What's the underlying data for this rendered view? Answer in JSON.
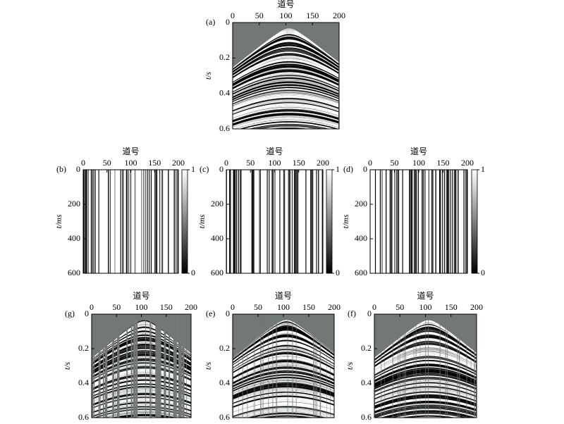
{
  "panels": [
    {
      "label": "(a)",
      "kind": "seismic",
      "xlabel": "道号",
      "ylabel": "t/s",
      "xlim": [
        0,
        200
      ],
      "xticks": [
        0,
        50,
        100,
        150,
        200
      ],
      "ylim": [
        0,
        0.6
      ],
      "yticks": [
        0,
        0.2,
        0.4,
        0.6
      ]
    },
    {
      "label": "(b)",
      "kind": "mask",
      "xlabel": "道号",
      "ylabel": "t/ms",
      "xlim": [
        0,
        200
      ],
      "xticks": [
        0,
        50,
        100,
        150,
        200
      ],
      "ylim": [
        0,
        600
      ],
      "yticks": [
        0,
        200,
        400,
        600
      ],
      "colorbar": {
        "lim": [
          0,
          1
        ],
        "ticks": [
          0,
          1
        ]
      }
    },
    {
      "label": "(c)",
      "kind": "mask",
      "xlabel": "道号",
      "ylabel": "t/ms",
      "xlim": [
        0,
        200
      ],
      "xticks": [
        0,
        50,
        100,
        150,
        200
      ],
      "ylim": [
        0,
        600
      ],
      "yticks": [
        0,
        200,
        400,
        600
      ],
      "colorbar": {
        "lim": [
          0,
          1
        ],
        "ticks": [
          0,
          1
        ]
      }
    },
    {
      "label": "(d)",
      "kind": "mask",
      "xlabel": "道号",
      "ylabel": "t/ms",
      "xlim": [
        0,
        200
      ],
      "xticks": [
        0,
        50,
        100,
        150,
        200
      ],
      "ylim": [
        0,
        600
      ],
      "yticks": [
        0,
        200,
        400,
        600
      ],
      "colorbar": {
        "lim": [
          0,
          1
        ],
        "ticks": [
          0,
          1
        ]
      }
    },
    {
      "label": "(g)",
      "kind": "seismic",
      "xlabel": "道号",
      "ylabel": "t/s",
      "xlim": [
        0,
        200
      ],
      "xticks": [
        0,
        50,
        100,
        150,
        200
      ],
      "ylim": [
        0,
        0.6
      ],
      "yticks": [
        0,
        0.2,
        0.4,
        0.6
      ]
    },
    {
      "label": "(e)",
      "kind": "seismic",
      "xlabel": "道号",
      "ylabel": "t/s",
      "xlim": [
        0,
        200
      ],
      "xticks": [
        0,
        50,
        100,
        150,
        200
      ],
      "ylim": [
        0,
        0.6
      ],
      "yticks": [
        0,
        0.2,
        0.4,
        0.6
      ]
    },
    {
      "label": "(f)",
      "kind": "seismic",
      "xlabel": "道号",
      "ylabel": "t/s",
      "xlim": [
        0,
        200
      ],
      "xticks": [
        0,
        50,
        100,
        150,
        200
      ],
      "ylim": [
        0,
        0.6
      ],
      "yticks": [
        0,
        0.2,
        0.4,
        0.6
      ]
    }
  ]
}
